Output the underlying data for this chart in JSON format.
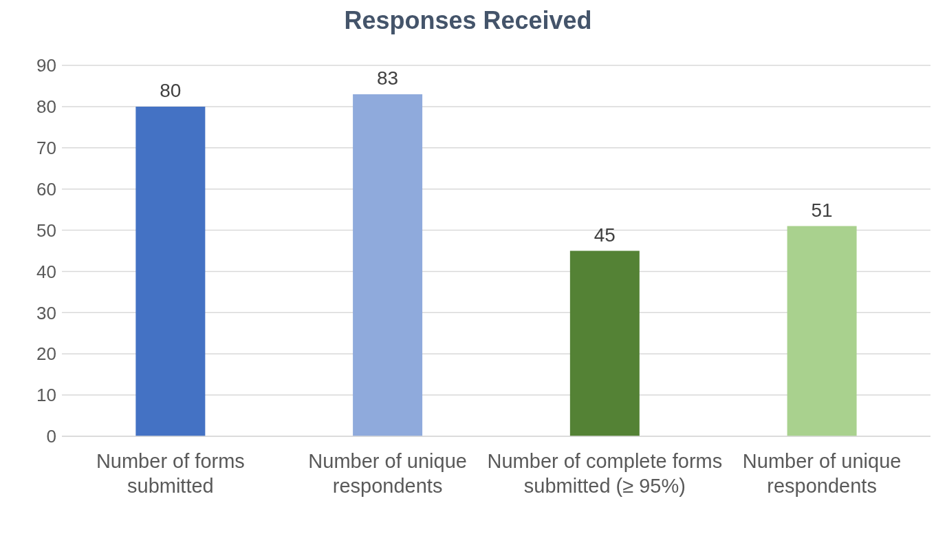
{
  "chart_data": {
    "type": "bar",
    "title": "Responses Received",
    "categories": [
      "Number of forms submitted",
      "Number of unique respondents",
      "Number of complete forms submitted (≥ 95%)",
      "Number of unique respondents"
    ],
    "values": [
      80,
      83,
      45,
      51
    ],
    "colors": [
      "#4472c4",
      "#8faadc",
      "#548235",
      "#a9d18e"
    ],
    "ylim": [
      0,
      90
    ],
    "yticks": [
      0,
      10,
      20,
      30,
      40,
      50,
      60,
      70,
      80,
      90
    ],
    "grid": "y",
    "data_labels": true
  }
}
